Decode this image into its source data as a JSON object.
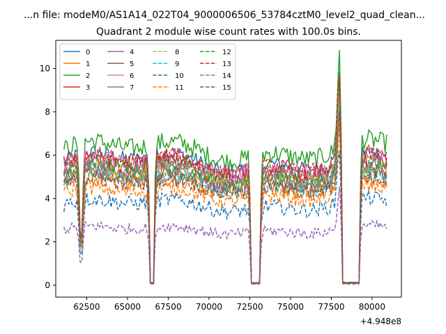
{
  "chart_data": {
    "type": "line",
    "suptitle": "...n file: modeM0/AS1A14_022T04_9000006506_53784cztM0_level2_quad_clean...",
    "title": "Quadrant 2 module wise count rates with 100.0s bins.",
    "xlabel": "",
    "ylabel": "",
    "x_offset_label": "+4.948e8",
    "xlim": [
      60600,
      81800
    ],
    "ylim": [
      -0.55,
      11.3
    ],
    "x_ticks": [
      62500,
      65000,
      67500,
      70000,
      72500,
      75000,
      77500,
      80000
    ],
    "x_tick_labels": [
      "62500",
      "65000",
      "67500",
      "70000",
      "72500",
      "75000",
      "77500",
      "80000"
    ],
    "y_ticks": [
      0,
      2,
      4,
      6,
      8,
      10
    ],
    "y_tick_labels": [
      "0",
      "2",
      "4",
      "6",
      "8",
      "10"
    ],
    "grid": false,
    "legend_position": "top-left",
    "legend_columns": 4,
    "x_start": 61100,
    "x_step": 100,
    "x_end": 80900,
    "gaps": [
      [
        62100,
        62200,
        0.38
      ],
      [
        66400,
        66600,
        0.02
      ],
      [
        72600,
        73100,
        0.02
      ],
      [
        78200,
        79200,
        0.02
      ]
    ],
    "series": [
      {
        "name": "0",
        "color": "#1f77b4",
        "dash": "solid",
        "level": 5.7,
        "noise": 0.35
      },
      {
        "name": "1",
        "color": "#ff7f0e",
        "dash": "solid",
        "level": 4.6,
        "noise": 0.4
      },
      {
        "name": "2",
        "color": "#2ca02c",
        "dash": "solid",
        "level": 6.2,
        "noise": 0.45
      },
      {
        "name": "3",
        "color": "#d62728",
        "dash": "solid",
        "level": 5.4,
        "noise": 0.4
      },
      {
        "name": "4",
        "color": "#9467bd",
        "dash": "solid",
        "level": 5.0,
        "noise": 0.4
      },
      {
        "name": "5",
        "color": "#8c564b",
        "dash": "solid",
        "level": 4.9,
        "noise": 0.35
      },
      {
        "name": "6",
        "color": "#e377c2",
        "dash": "solid",
        "level": 5.5,
        "noise": 0.4
      },
      {
        "name": "7",
        "color": "#7f7f7f",
        "dash": "solid",
        "level": 5.1,
        "noise": 0.35
      },
      {
        "name": "8",
        "color": "#bcbd22",
        "dash": "dashed",
        "level": 5.0,
        "noise": 0.35
      },
      {
        "name": "9",
        "color": "#17becf",
        "dash": "dashed",
        "level": 4.7,
        "noise": 0.35
      },
      {
        "name": "10",
        "color": "#1f77b4",
        "dash": "dashed",
        "level": 3.7,
        "noise": 0.35
      },
      {
        "name": "11",
        "color": "#ff7f0e",
        "dash": "dashed",
        "level": 4.2,
        "noise": 0.35
      },
      {
        "name": "12",
        "color": "#2ca02c",
        "dash": "dashed",
        "level": 5.3,
        "noise": 0.4
      },
      {
        "name": "13",
        "color": "#d62728",
        "dash": "dashed",
        "level": 5.6,
        "noise": 0.4
      },
      {
        "name": "14",
        "color": "#9467bd",
        "dash": "dashed",
        "level": 2.55,
        "noise": 0.25
      },
      {
        "name": "15",
        "color": "#8c564b",
        "dash": "dashed",
        "level": 4.6,
        "noise": 0.35
      }
    ],
    "flare": {
      "center": 78000,
      "width": 180,
      "peak_factor": 1.7
    }
  }
}
